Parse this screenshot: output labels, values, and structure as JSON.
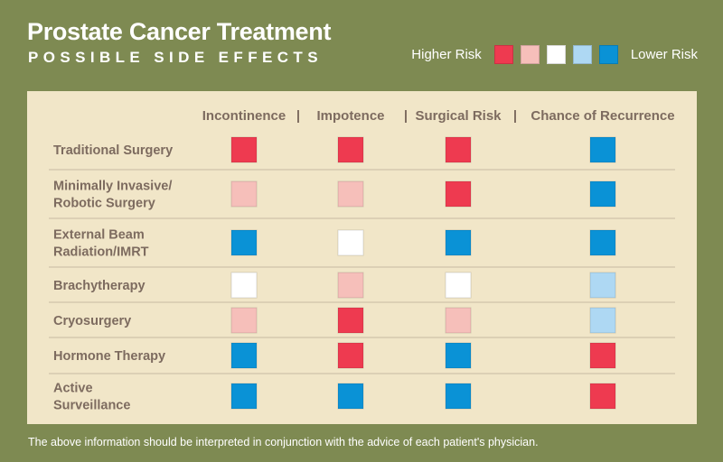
{
  "colors": {
    "background": "#7e8a52",
    "panel": "#f1e6c8",
    "text": "#7d6b5f",
    "divider": "#c7bba2",
    "risk": [
      "#ee3a50",
      "#f6bfba",
      "#ffffff",
      "#aed8f3",
      "#0a92d6"
    ]
  },
  "header": {
    "title": "Prostate Cancer Treatment",
    "subtitle": "POSSIBLE SIDE EFFECTS"
  },
  "legend": {
    "higher_label": "Higher Risk",
    "lower_label": "Lower Risk"
  },
  "footnote": "The above information should be interpreted in conjunction with the advice of each patient's physician.",
  "chart_data": {
    "type": "table",
    "title": "Prostate Cancer Treatment",
    "subtitle": "POSSIBLE SIDE EFFECTS",
    "scale": "1 = Higher Risk ... 5 = Lower Risk",
    "column_separator": "|",
    "columns": [
      "Incontinence",
      "Impotence",
      "Surgical Risk",
      "Chance of Recurrence"
    ],
    "rows": [
      {
        "label": [
          "Traditional Surgery"
        ],
        "values": [
          1,
          1,
          1,
          5
        ]
      },
      {
        "label": [
          "Minimally Invasive/",
          "Robotic Surgery"
        ],
        "values": [
          2,
          2,
          1,
          5
        ]
      },
      {
        "label": [
          "External Beam",
          "Radiation/IMRT"
        ],
        "values": [
          5,
          3,
          5,
          5
        ]
      },
      {
        "label": [
          "Brachytherapy"
        ],
        "values": [
          3,
          2,
          3,
          4
        ]
      },
      {
        "label": [
          "Cryosurgery"
        ],
        "values": [
          2,
          1,
          2,
          4
        ]
      },
      {
        "label": [
          "Hormone Therapy"
        ],
        "values": [
          5,
          1,
          5,
          1
        ]
      },
      {
        "label": [
          "Active",
          "Surveillance"
        ],
        "values": [
          5,
          5,
          5,
          1
        ]
      }
    ]
  }
}
